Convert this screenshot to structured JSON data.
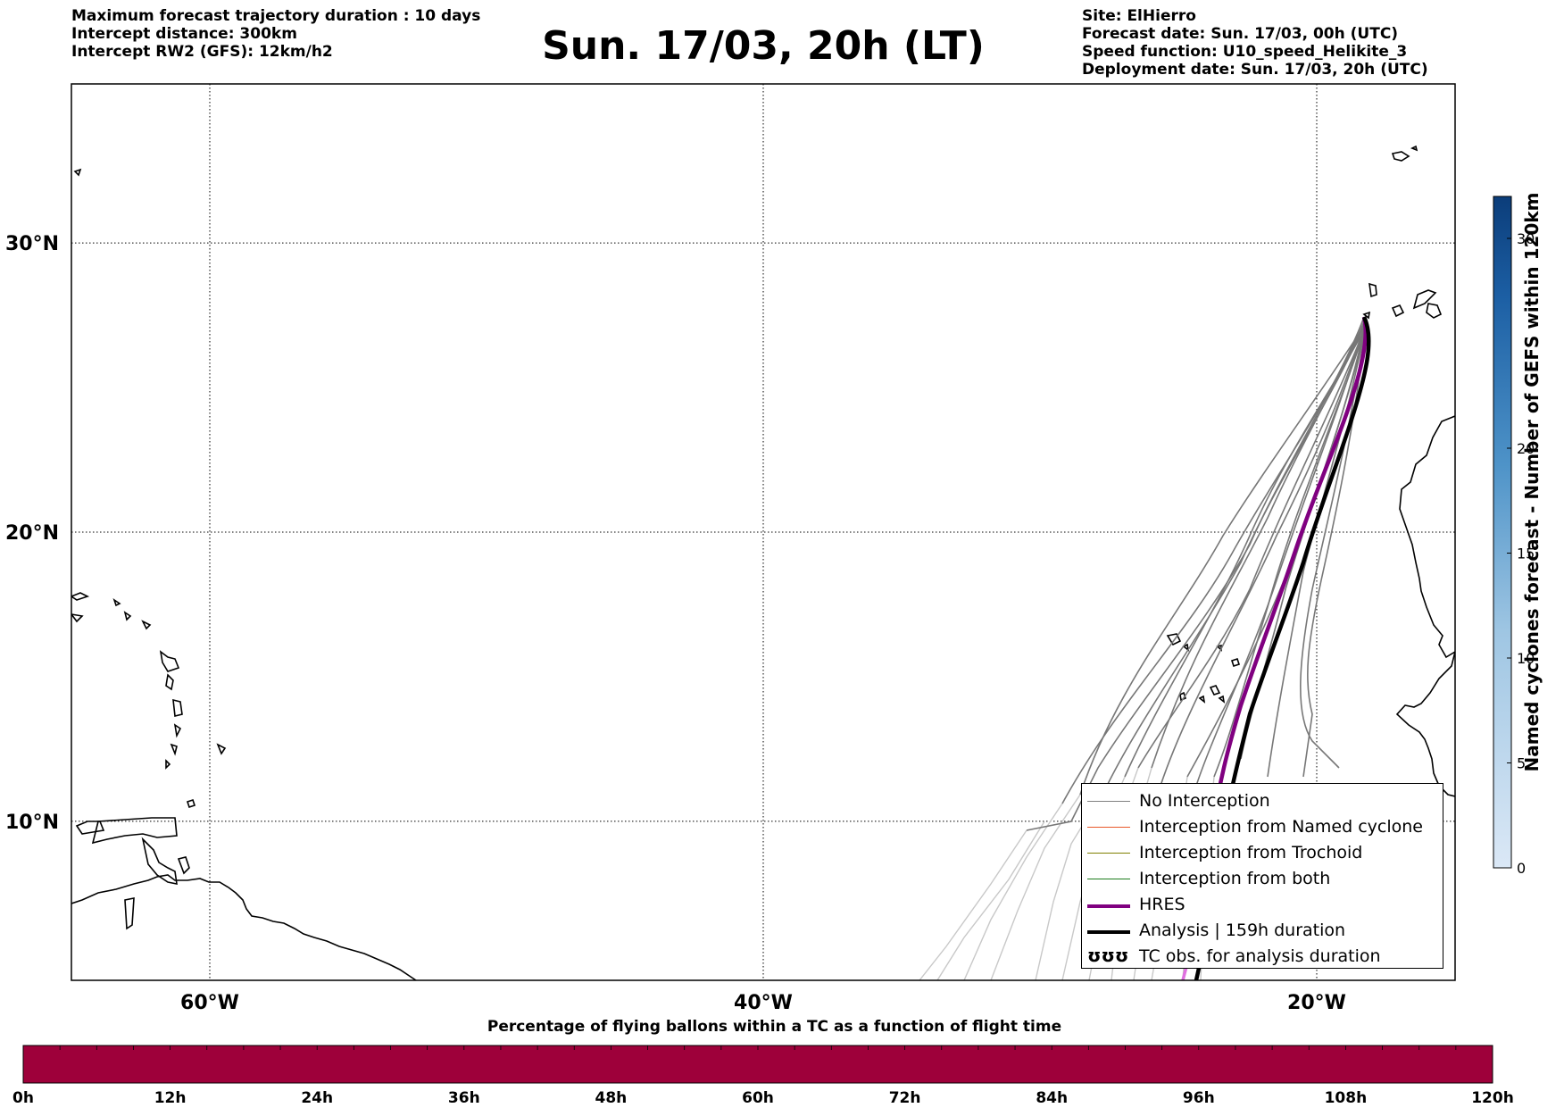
{
  "header_left": {
    "line1": "Maximum forecast trajectory duration : 10 days",
    "line2": "Intercept distance: 300km",
    "line3": "Intercept RW2 (GFS):  12km/h2"
  },
  "title": "Sun. 17/03, 20h (LT)",
  "header_right": {
    "site": "Site: ElHierro",
    "forecast_date": "Forecast date: Sun. 17/03, 00h (UTC)",
    "speed_function": "Speed function: U10_speed_Helikite_3",
    "deployment_date": "Deployment date: Sun. 17/03, 20h (UTC)"
  },
  "map": {
    "lon_range": [
      -65,
      -15
    ],
    "lat_range": [
      4.5,
      35.5
    ],
    "lat_ticks": [
      {
        "value": 30,
        "label": "30°N"
      },
      {
        "value": 20,
        "label": "20°N"
      },
      {
        "value": 10,
        "label": "10°N"
      }
    ],
    "lon_ticks": [
      {
        "value": -60,
        "label": "60°W"
      },
      {
        "value": -40,
        "label": "40°W"
      },
      {
        "value": -20,
        "label": "20°W"
      }
    ],
    "grid": "dotted"
  },
  "legend": {
    "placement": "bottom-right",
    "items": [
      {
        "label": "No Interception",
        "color": "#808080",
        "style": "thin"
      },
      {
        "label": "Interception from Named cyclone",
        "color": "#e8582a",
        "style": "thin"
      },
      {
        "label": "Interception from Trochoid",
        "color": "#808000",
        "style": "thin"
      },
      {
        "label": "Interception from both",
        "color": "#1e7d1e",
        "style": "thin"
      },
      {
        "label": "HRES",
        "color": "#800080",
        "style": "thick"
      },
      {
        "label": "Analysis | 159h duration",
        "color": "#000000",
        "style": "thick"
      },
      {
        "label": "TC obs. for analysis duration",
        "color": "#000000",
        "style": "symbol",
        "symbol": "ʊʊʊ"
      }
    ]
  },
  "colorbar": {
    "title": "Named cyclones forecast - Number of GEFS within 120km",
    "min": 0,
    "max": 32,
    "ticks": [
      {
        "value": 0,
        "label": "0"
      },
      {
        "value": 5,
        "label": "5"
      },
      {
        "value": 10,
        "label": "10"
      },
      {
        "value": 15,
        "label": "15"
      },
      {
        "value": 20,
        "label": "20"
      },
      {
        "value": 30,
        "label": "30"
      }
    ],
    "color_low": "#dbe8f6",
    "color_high": "#0b3d7a"
  },
  "bottom_bar": {
    "title": "Percentage of flying ballons within a TC as a function of flight time",
    "color": "#9e003a",
    "ticks": [
      "0h",
      "12h",
      "24h",
      "36h",
      "48h",
      "60h",
      "72h",
      "84h",
      "96h",
      "108h",
      "120h"
    ]
  }
}
